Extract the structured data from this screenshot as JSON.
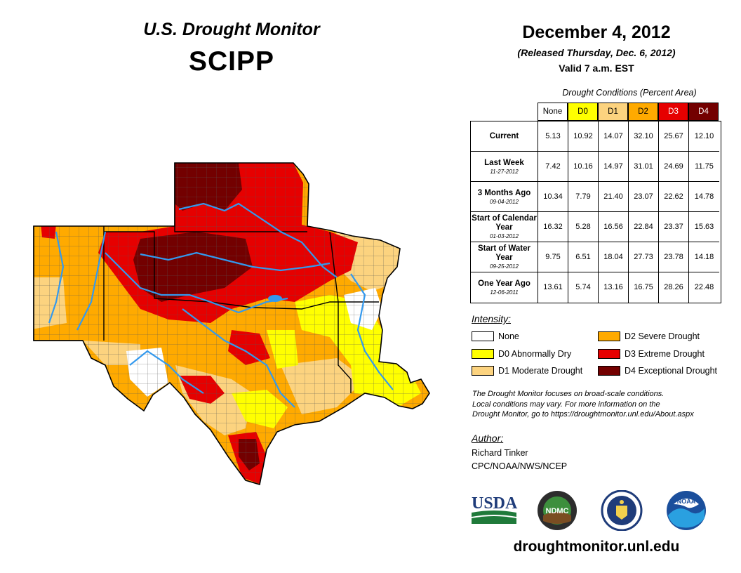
{
  "header": {
    "title": "U.S. Drought Monitor",
    "region": "SCIPP"
  },
  "date_block": {
    "date": "December 4, 2012",
    "released": "(Released Thursday, Dec. 6, 2012)",
    "valid": "Valid 7 a.m. EST"
  },
  "table": {
    "title": "Drought Conditions (Percent Area)",
    "columns": [
      "None",
      "D0",
      "D1",
      "D2",
      "D3",
      "D4"
    ],
    "column_colors": [
      "#ffffff",
      "#ffff00",
      "#fcd37f",
      "#ffaa00",
      "#e60000",
      "#730000"
    ],
    "rows": [
      {
        "name": "Current",
        "date": "",
        "values": [
          "5.13",
          "10.92",
          "14.07",
          "32.10",
          "25.67",
          "12.10"
        ]
      },
      {
        "name": "Last Week",
        "date": "11-27-2012",
        "values": [
          "7.42",
          "10.16",
          "14.97",
          "31.01",
          "24.69",
          "11.75"
        ]
      },
      {
        "name": "3 Months Ago",
        "date": "09-04-2012",
        "values": [
          "10.34",
          "7.79",
          "21.40",
          "23.07",
          "22.62",
          "14.78"
        ]
      },
      {
        "name": "Start of Calendar Year",
        "date": "01-03-2012",
        "values": [
          "16.32",
          "5.28",
          "16.56",
          "22.84",
          "23.37",
          "15.63"
        ]
      },
      {
        "name": "Start of Water Year",
        "date": "09-25-2012",
        "values": [
          "9.75",
          "6.51",
          "18.04",
          "27.73",
          "23.78",
          "14.18"
        ]
      },
      {
        "name": "One Year Ago",
        "date": "12-06-2011",
        "values": [
          "13.61",
          "5.74",
          "13.16",
          "16.75",
          "28.26",
          "22.48"
        ]
      }
    ]
  },
  "legend": {
    "title": "Intensity:",
    "items": [
      {
        "label": "None",
        "color": "#ffffff"
      },
      {
        "label": "D0 Abnormally Dry",
        "color": "#ffff00"
      },
      {
        "label": "D1 Moderate Drought",
        "color": "#fcd37f"
      },
      {
        "label": "D2 Severe Drought",
        "color": "#ffaa00"
      },
      {
        "label": "D3 Extreme Drought",
        "color": "#e60000"
      },
      {
        "label": "D4 Exceptional Drought",
        "color": "#730000"
      }
    ]
  },
  "note": {
    "line1": "The Drought Monitor focuses on broad-scale conditions.",
    "line2": "Local conditions may vary. For more information on the",
    "line3": "Drought Monitor, go to https://droughtmonitor.unl.edu/About.aspx"
  },
  "author": {
    "heading": "Author:",
    "name": "Richard Tinker",
    "org": "CPC/NOAA/NWS/NCEP"
  },
  "logos": {
    "usda": "USDA",
    "ndmc": "NDMC",
    "noaa": "NOAA"
  },
  "footer": {
    "url": "droughtmonitor.unl.edu"
  },
  "colors": {
    "water": "#3399ee",
    "county_line": "#555555"
  }
}
